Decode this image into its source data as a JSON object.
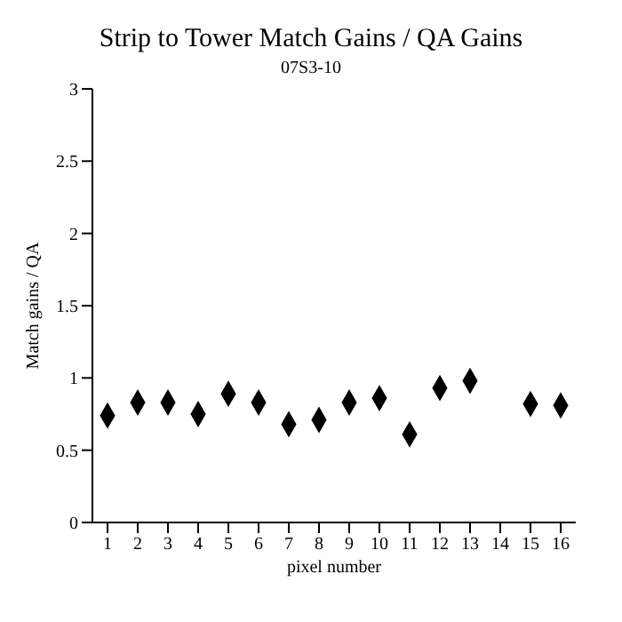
{
  "chart_data": {
    "type": "scatter",
    "title": "Strip to Tower Match Gains / QA Gains",
    "subtitle": "07S3-10",
    "xlabel": "pixel number",
    "ylabel": "Match gains / QA",
    "x": [
      1,
      2,
      3,
      4,
      5,
      6,
      7,
      8,
      9,
      10,
      11,
      12,
      13,
      15,
      16
    ],
    "values": [
      0.74,
      0.83,
      0.83,
      0.75,
      0.89,
      0.83,
      0.68,
      0.71,
      0.83,
      0.86,
      0.61,
      0.93,
      0.98,
      0.82,
      0.81
    ],
    "errors": [
      null,
      null,
      0.03,
      null,
      0.03,
      null,
      0.03,
      null,
      null,
      null,
      null,
      null,
      null,
      null,
      null
    ],
    "color": "#000000",
    "marker": "diamond",
    "grid": false,
    "xlim": [
      0.5,
      16.5
    ],
    "xticks": [
      1,
      2,
      3,
      4,
      5,
      6,
      7,
      8,
      9,
      10,
      11,
      12,
      13,
      14,
      15,
      16
    ],
    "ylim": [
      0,
      3
    ],
    "yticks": [
      0,
      0.5,
      1,
      1.5,
      2,
      2.5,
      3
    ]
  }
}
